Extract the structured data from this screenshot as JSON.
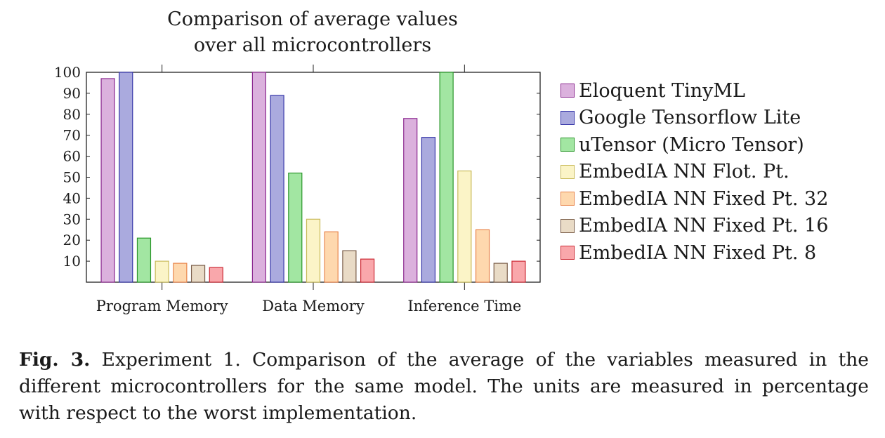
{
  "chart_data": {
    "type": "bar",
    "title_lines": [
      "Comparison of average values",
      "over all microcontrollers"
    ],
    "categories": [
      "Program Memory",
      "Data Memory",
      "Inference Time"
    ],
    "ylim": [
      0,
      100
    ],
    "yticks": [
      10,
      20,
      30,
      40,
      50,
      60,
      70,
      80,
      90,
      100
    ],
    "grid": false,
    "legend_position": "right",
    "series": [
      {
        "name": "Eloquent TinyML",
        "values": [
          97,
          100,
          78
        ],
        "fill": "#dbb1dd",
        "stroke": "#8c2a90"
      },
      {
        "name": "Google Tensorflow Lite",
        "values": [
          100,
          89,
          69
        ],
        "fill": "#aaaade",
        "stroke": "#3535a8"
      },
      {
        "name": "uTensor (Micro Tensor)",
        "values": [
          21,
          52,
          100
        ],
        "fill": "#a2e6a2",
        "stroke": "#2a962a"
      },
      {
        "name": "EmbedIA NN Flot. Pt.",
        "values": [
          10,
          30,
          53
        ],
        "fill": "#fbf4c7",
        "stroke": "#c9bb5c"
      },
      {
        "name": "EmbedIA NN Fixed Pt. 32",
        "values": [
          9,
          24,
          25
        ],
        "fill": "#fed8ae",
        "stroke": "#e8844a"
      },
      {
        "name": "EmbedIA NN Fixed Pt. 16",
        "values": [
          8,
          15,
          9
        ],
        "fill": "#e9dbc6",
        "stroke": "#7a5e4a"
      },
      {
        "name": "EmbedIA NN Fixed Pt. 8",
        "values": [
          7,
          11,
          10
        ],
        "fill": "#f9a7ab",
        "stroke": "#cc2a35"
      }
    ]
  },
  "caption": {
    "label": "Fig. 3.",
    "text": " Experiment 1. Comparison of the average of the variables measured in the different microcontrollers for the same model. The units are measured in percentage with respect to the worst implementation."
  }
}
